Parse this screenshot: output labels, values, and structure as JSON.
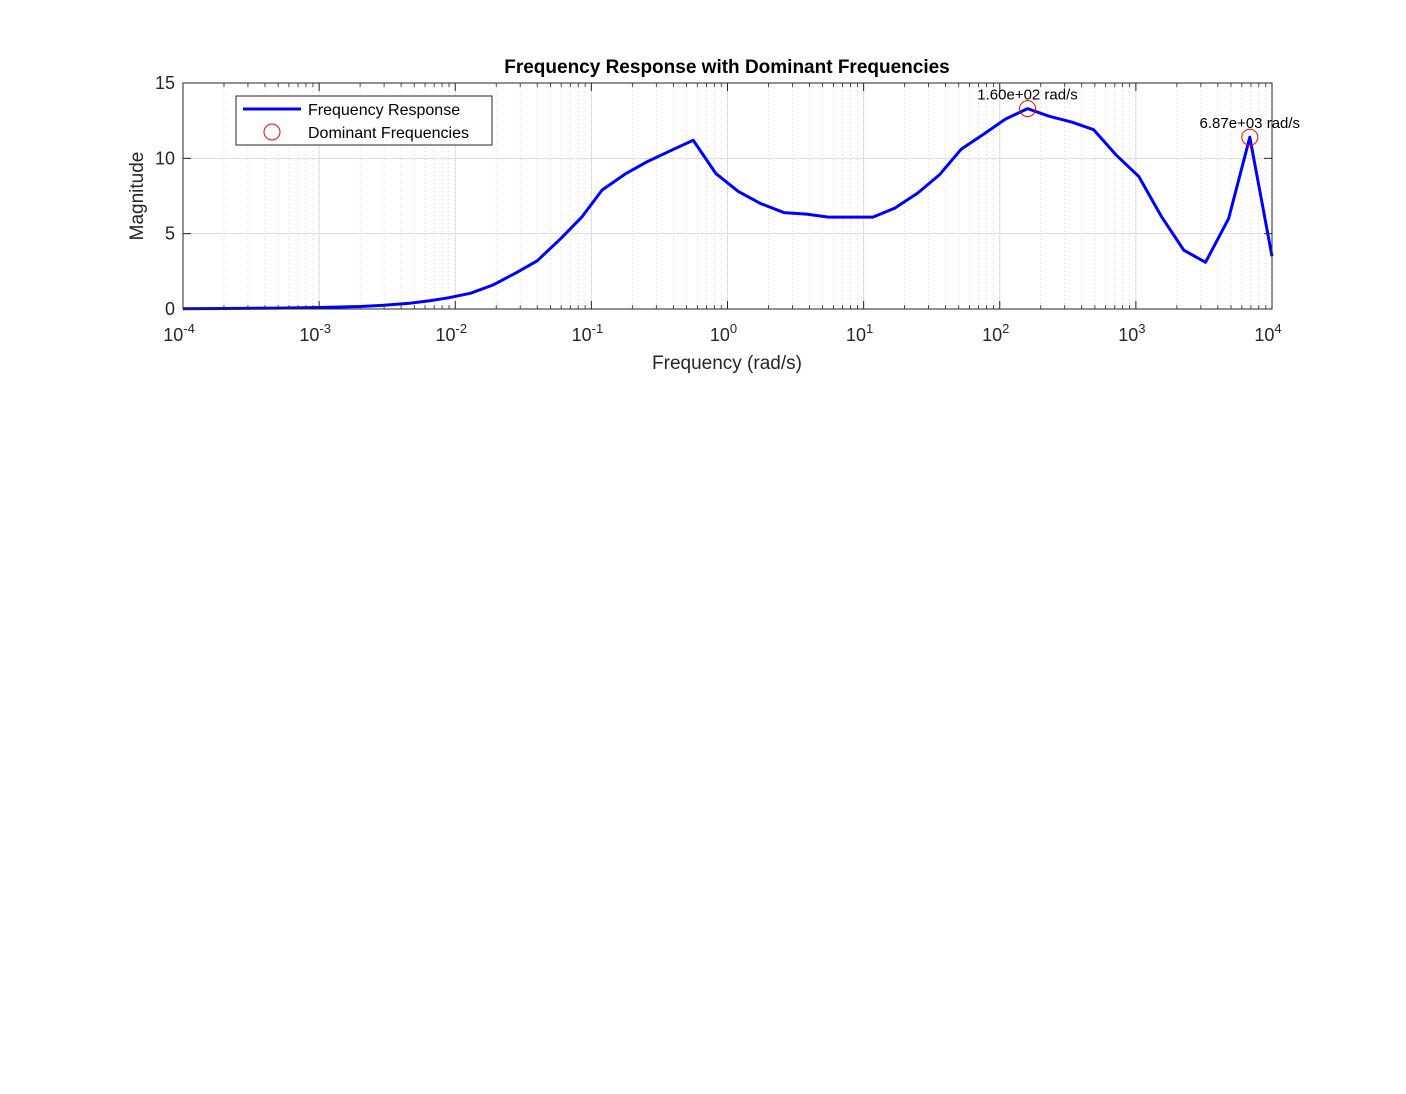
{
  "chart_data": {
    "type": "line",
    "title": "Frequency Response with Dominant Frequencies",
    "xlabel": "Frequency (rad/s)",
    "ylabel": "Magnitude",
    "xscale": "log",
    "xlim": [
      0.0001,
      10000
    ],
    "ylim": [
      0,
      15
    ],
    "grid": true,
    "legend_placement": "top-left",
    "x_ticks": [
      {
        "value": 0.0001,
        "base": "10",
        "exp": "-4"
      },
      {
        "value": 0.001,
        "base": "10",
        "exp": "-3"
      },
      {
        "value": 0.01,
        "base": "10",
        "exp": "-2"
      },
      {
        "value": 0.1,
        "base": "10",
        "exp": "-1"
      },
      {
        "value": 1,
        "base": "10",
        "exp": "0"
      },
      {
        "value": 10,
        "base": "10",
        "exp": "1"
      },
      {
        "value": 100,
        "base": "10",
        "exp": "2"
      },
      {
        "value": 1000,
        "base": "10",
        "exp": "3"
      },
      {
        "value": 10000,
        "base": "10",
        "exp": "4"
      }
    ],
    "y_ticks": [
      {
        "value": 0,
        "label": "0"
      },
      {
        "value": 5,
        "label": "5"
      },
      {
        "value": 10,
        "label": "10"
      },
      {
        "value": 15,
        "label": "15"
      }
    ],
    "series": [
      {
        "name": "Frequency Response",
        "color": "#0000ff",
        "style": "line",
        "x": [
          0.0001,
          0.0002,
          0.0005,
          0.001,
          0.002,
          0.003,
          0.0045,
          0.0065,
          0.009,
          0.013,
          0.019,
          0.028,
          0.04,
          0.06,
          0.085,
          0.12,
          0.18,
          0.26,
          0.38,
          0.56,
          0.82,
          1.2,
          1.75,
          2.6,
          3.8,
          5.5,
          8,
          11.7,
          17,
          25,
          36,
          52,
          76,
          110,
          160,
          230,
          340,
          490,
          720,
          1050,
          1550,
          2250,
          3250,
          4800,
          6870,
          10000
        ],
        "y": [
          0.02,
          0.03,
          0.06,
          0.1,
          0.17,
          0.25,
          0.37,
          0.55,
          0.75,
          1.05,
          1.6,
          2.4,
          3.2,
          4.7,
          6.1,
          7.9,
          9.0,
          9.8,
          10.5,
          11.2,
          9.0,
          7.8,
          7.0,
          6.4,
          6.3,
          6.1,
          6.1,
          6.1,
          6.7,
          7.7,
          8.9,
          10.6,
          11.6,
          12.6,
          13.3,
          12.8,
          12.4,
          11.9,
          10.2,
          8.8,
          6.1,
          3.9,
          3.1,
          6.0,
          11.4,
          3.5
        ]
      },
      {
        "name": "Dominant Frequencies",
        "color": "#ff0000",
        "style": "marker-circle",
        "x": [
          160,
          6870
        ],
        "y": [
          13.3,
          11.4
        ]
      }
    ],
    "annotations": [
      {
        "text": "1.60e+02 rad/s",
        "x": 160,
        "y": 13.3
      },
      {
        "text": "6.87e+03 rad/s",
        "x": 6870,
        "y": 11.4
      }
    ]
  }
}
